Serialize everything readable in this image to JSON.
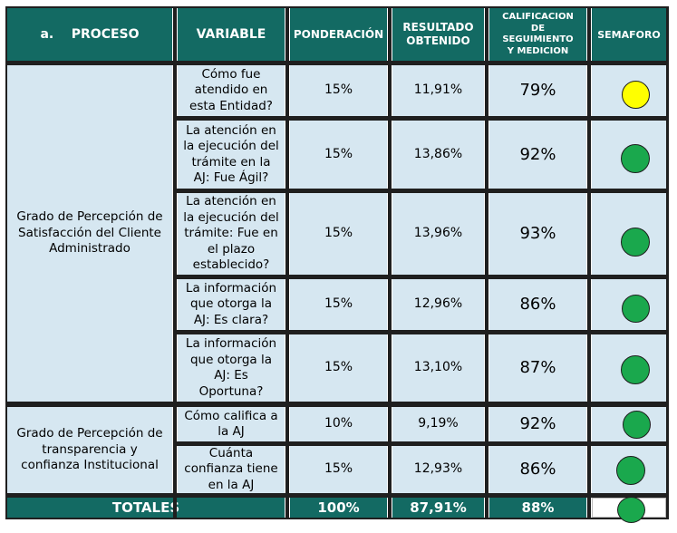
{
  "colors": {
    "header_bg": "#136a63",
    "row_bg": "#d6e7f1",
    "yellow": "#ffff00",
    "green": "#1aa84d"
  },
  "headers": {
    "proceso": "a.    PROCESO",
    "variable": "VARIABLE",
    "ponderacion": "PONDERACIÓN",
    "resultado_line1": "RESULTADO",
    "resultado_line2": "OBTENIDO",
    "calif_line1": "CALIFICACION",
    "calif_line2": "DE",
    "calif_line3": "SEGUIMIENTO",
    "calif_line4": "Y MEDICION",
    "semaforo": "SEMAFORO"
  },
  "groups": [
    {
      "process": "Grado de Percepción de Satisfacción del Cliente Administrado"
    },
    {
      "process": "Grado de Percepción de transparencia y confianza Institucional"
    }
  ],
  "rows": [
    {
      "variable": "Cómo fue atendido en esta Entidad?",
      "ponderacion": "15%",
      "resultado": "11,91%",
      "calificacion": "79%",
      "semaforo": "yellow"
    },
    {
      "variable": "La atención en la ejecución del trámite en la AJ: Fue Ágil?",
      "ponderacion": "15%",
      "resultado": "13,86%",
      "calificacion": "92%",
      "semaforo": "green"
    },
    {
      "variable": "La atención en la ejecución del trámite: Fue en el plazo establecido?",
      "ponderacion": "15%",
      "resultado": "13,96%",
      "calificacion": "93%",
      "semaforo": "green"
    },
    {
      "variable": "La información que otorga la AJ: Es clara?",
      "ponderacion": "15%",
      "resultado": "12,96%",
      "calificacion": "86%",
      "semaforo": "green"
    },
    {
      "variable": "La información que otorga la AJ: Es Oportuna?",
      "ponderacion": "15%",
      "resultado": "13,10%",
      "calificacion": "87%",
      "semaforo": "green"
    },
    {
      "variable": "Cómo califica a la AJ",
      "ponderacion": "10%",
      "resultado": "9,19%",
      "calificacion": "92%",
      "semaforo": "green"
    },
    {
      "variable": "Cuánta confianza tiene en la AJ",
      "ponderacion": "15%",
      "resultado": "12,93%",
      "calificacion": "86%",
      "semaforo": "green"
    }
  ],
  "totals": {
    "label": "TOTALES",
    "ponderacion": "100%",
    "resultado": "87,91%",
    "calificacion": "88%",
    "semaforo": "green"
  }
}
